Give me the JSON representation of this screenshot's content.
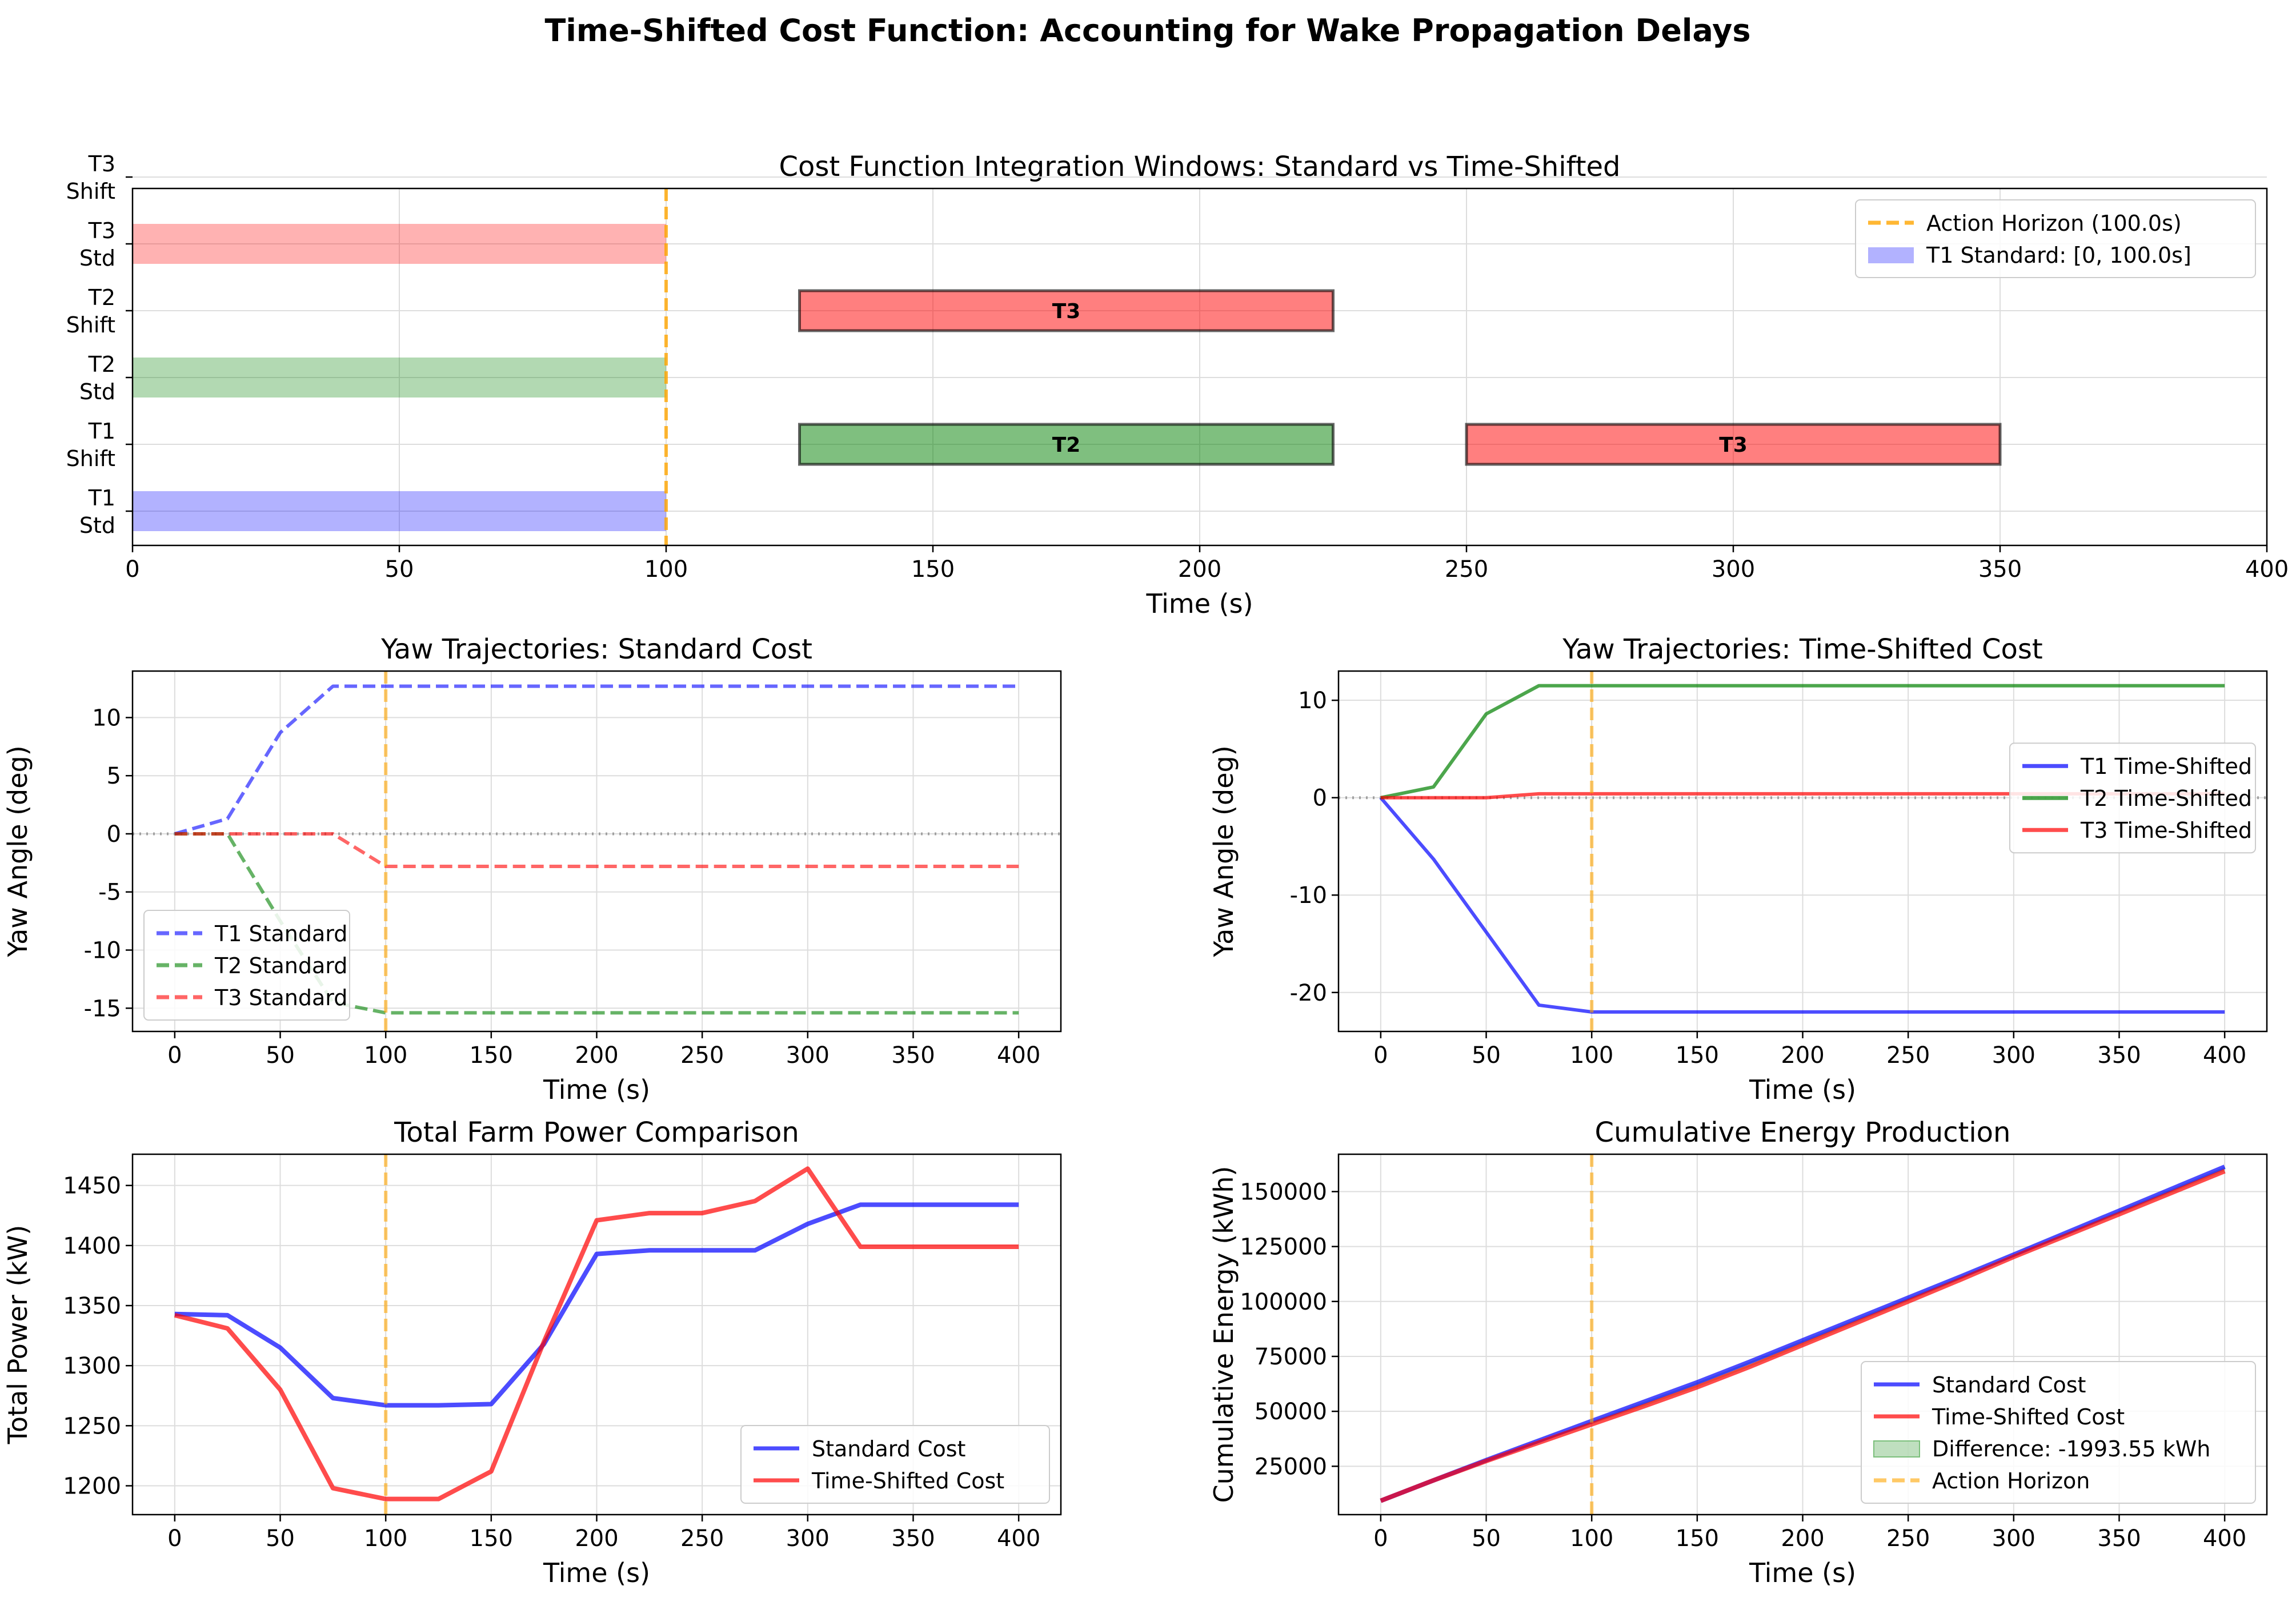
{
  "figure": {
    "suptitle": "Time-Shifted Cost Function: Accounting for Wake Propagation Delays"
  },
  "colors": {
    "t1": "#0000ff",
    "t2": "#008000",
    "t3": "#ff0000",
    "horizon": "#ffa500",
    "grid": "#dddddd",
    "diff_fill": "#008000"
  },
  "chart_data": [
    {
      "id": "windows",
      "type": "bar",
      "title": "Cost Function Integration Windows: Standard vs Time-Shifted",
      "xlabel": "Time (s)",
      "ylabel": "",
      "xlim": [
        0,
        400
      ],
      "xticks": [
        0,
        50,
        100,
        150,
        200,
        250,
        300,
        350,
        400
      ],
      "rows": [
        "T1\nStd",
        "T1\nShift",
        "T2\nStd",
        "T2\nShift",
        "T3\nStd",
        "T3\nShift"
      ],
      "bars": [
        {
          "row": 0,
          "start": 0,
          "end": 100,
          "color": "t1",
          "alpha": 0.3,
          "label": ""
        },
        {
          "row": 2,
          "start": 0,
          "end": 100,
          "color": "t2",
          "alpha": 0.3,
          "label": ""
        },
        {
          "row": 4,
          "start": 0,
          "end": 100,
          "color": "t3",
          "alpha": 0.3,
          "label": ""
        },
        {
          "row": 1,
          "start": 125,
          "end": 225,
          "color": "t2",
          "alpha": 0.5,
          "label": "T2",
          "edge": true
        },
        {
          "row": 1,
          "start": 250,
          "end": 350,
          "color": "t3",
          "alpha": 0.5,
          "label": "T3",
          "edge": true
        },
        {
          "row": 3,
          "start": 125,
          "end": 225,
          "color": "t3",
          "alpha": 0.5,
          "label": "T3",
          "edge": true
        }
      ],
      "vline": 100,
      "grid": true,
      "legend": {
        "position": "upper-right",
        "entries": [
          "Action Horizon (100.0s)",
          "T1 Standard: [0, 100.0s]"
        ]
      }
    },
    {
      "id": "yaw_std",
      "type": "line",
      "title": "Yaw Trajectories: Standard Cost",
      "xlabel": "Time (s)",
      "ylabel": "Yaw Angle (deg)",
      "xlim": [
        -20,
        420
      ],
      "ylim": [
        -17,
        14
      ],
      "xticks": [
        0,
        50,
        100,
        150,
        200,
        250,
        300,
        350,
        400
      ],
      "yticks": [
        -15,
        -10,
        -5,
        0,
        5,
        10
      ],
      "x": [
        0,
        25,
        50,
        75,
        100,
        125,
        150,
        175,
        200,
        225,
        250,
        275,
        300,
        325,
        350,
        375,
        400
      ],
      "series": [
        {
          "name": "T1 Standard",
          "color": "t1",
          "dash": true,
          "values": [
            0,
            1.3,
            8.7,
            12.7,
            12.7,
            12.7,
            12.7,
            12.7,
            12.7,
            12.7,
            12.7,
            12.7,
            12.7,
            12.7,
            12.7,
            12.7,
            12.7
          ]
        },
        {
          "name": "T2 Standard",
          "color": "t2",
          "dash": true,
          "values": [
            0,
            0,
            -7.5,
            -14.5,
            -15.4,
            -15.4,
            -15.4,
            -15.4,
            -15.4,
            -15.4,
            -15.4,
            -15.4,
            -15.4,
            -15.4,
            -15.4,
            -15.4,
            -15.4
          ]
        },
        {
          "name": "T3 Standard",
          "color": "t3",
          "dash": true,
          "values": [
            0,
            0,
            0,
            0,
            -2.8,
            -2.8,
            -2.8,
            -2.8,
            -2.8,
            -2.8,
            -2.8,
            -2.8,
            -2.8,
            -2.8,
            -2.8,
            -2.8,
            -2.8
          ]
        }
      ],
      "hline": 0,
      "vline": 100,
      "grid": true,
      "legend": {
        "position": "lower-left",
        "entries": [
          "T1 Standard",
          "T2 Standard",
          "T3 Standard"
        ]
      }
    },
    {
      "id": "yaw_shift",
      "type": "line",
      "title": "Yaw Trajectories: Time-Shifted Cost",
      "xlabel": "Time (s)",
      "ylabel": "Yaw Angle (deg)",
      "xlim": [
        -20,
        420
      ],
      "ylim": [
        -24,
        13
      ],
      "xticks": [
        0,
        50,
        100,
        150,
        200,
        250,
        300,
        350,
        400
      ],
      "yticks": [
        -20,
        -10,
        0,
        10
      ],
      "x": [
        0,
        25,
        50,
        75,
        100,
        125,
        150,
        175,
        200,
        225,
        250,
        275,
        300,
        325,
        350,
        375,
        400
      ],
      "series": [
        {
          "name": "T1 Time-Shifted",
          "color": "t1",
          "dash": false,
          "values": [
            0,
            -6.3,
            -13.8,
            -21.3,
            -22,
            -22,
            -22,
            -22,
            -22,
            -22,
            -22,
            -22,
            -22,
            -22,
            -22,
            -22,
            -22
          ]
        },
        {
          "name": "T2 Time-Shifted",
          "color": "t2",
          "dash": false,
          "values": [
            0,
            1.1,
            8.6,
            11.5,
            11.5,
            11.5,
            11.5,
            11.5,
            11.5,
            11.5,
            11.5,
            11.5,
            11.5,
            11.5,
            11.5,
            11.5,
            11.5
          ]
        },
        {
          "name": "T3 Time-Shifted",
          "color": "t3",
          "dash": false,
          "values": [
            0,
            0,
            0,
            0.4,
            0.4,
            0.4,
            0.4,
            0.4,
            0.4,
            0.4,
            0.4,
            0.4,
            0.4,
            0.4,
            0.4,
            0.4,
            0.4
          ]
        }
      ],
      "hline": 0,
      "vline": 100,
      "grid": true,
      "legend": {
        "position": "right",
        "entries": [
          "T1 Time-Shifted",
          "T2 Time-Shifted",
          "T3 Time-Shifted"
        ]
      }
    },
    {
      "id": "power",
      "type": "line",
      "title": "Total Farm Power Comparison",
      "xlabel": "Time (s)",
      "ylabel": "Total Power (kW)",
      "xlim": [
        -20,
        420
      ],
      "ylim": [
        1176,
        1476
      ],
      "xticks": [
        0,
        50,
        100,
        150,
        200,
        250,
        300,
        350,
        400
      ],
      "yticks": [
        1200,
        1250,
        1300,
        1350,
        1400,
        1450
      ],
      "x": [
        0,
        25,
        50,
        75,
        100,
        125,
        150,
        175,
        200,
        225,
        250,
        275,
        300,
        325,
        350,
        375,
        400
      ],
      "series": [
        {
          "name": "Standard Cost",
          "color": "t1",
          "dash": false,
          "values": [
            1343,
            1342,
            1315,
            1273,
            1267,
            1267,
            1268,
            1318,
            1393,
            1396,
            1396,
            1396,
            1418,
            1434,
            1434,
            1434,
            1434
          ]
        },
        {
          "name": "Time-Shifted Cost",
          "color": "t3",
          "dash": false,
          "values": [
            1342,
            1331,
            1280,
            1198,
            1189,
            1189,
            1212,
            1320,
            1421,
            1427,
            1427,
            1437,
            1464,
            1399,
            1399,
            1399,
            1399
          ]
        }
      ],
      "vline": 100,
      "grid": true,
      "legend": {
        "position": "lower-right",
        "entries": [
          "Standard Cost",
          "Time-Shifted Cost"
        ]
      }
    },
    {
      "id": "energy",
      "type": "line",
      "title": "Cumulative Energy Production",
      "xlabel": "Time (s)",
      "ylabel": "Cumulative Energy (kWh)",
      "xlim": [
        -20,
        420
      ],
      "ylim": [
        3000,
        167000
      ],
      "xticks": [
        0,
        50,
        100,
        150,
        200,
        250,
        300,
        350,
        400
      ],
      "yticks": [
        25000,
        50000,
        75000,
        100000,
        125000,
        150000
      ],
      "x": [
        0,
        25,
        50,
        75,
        100,
        125,
        150,
        175,
        200,
        225,
        250,
        275,
        300,
        325,
        350,
        375,
        400
      ],
      "series": [
        {
          "name": "Standard Cost",
          "color": "t1",
          "dash": false,
          "values": [
            9300,
            18600,
            27800,
            36700,
            45600,
            54400,
            63200,
            72600,
            82300,
            92000,
            101700,
            111400,
            121300,
            131300,
            141300,
            151300,
            161300
          ]
        },
        {
          "name": "Time-Shifted Cost",
          "color": "t3",
          "dash": false,
          "values": [
            9300,
            18600,
            27400,
            35800,
            44100,
            52400,
            61000,
            70300,
            80200,
            90100,
            100000,
            110000,
            120300,
            130000,
            139700,
            149500,
            159300
          ]
        }
      ],
      "difference_label": "Difference: -1993.55 kWh",
      "vline": 100,
      "grid": true,
      "legend": {
        "position": "lower-right",
        "entries": [
          "Standard Cost",
          "Time-Shifted Cost",
          "Difference: -1993.55 kWh",
          "Action Horizon"
        ]
      }
    }
  ]
}
